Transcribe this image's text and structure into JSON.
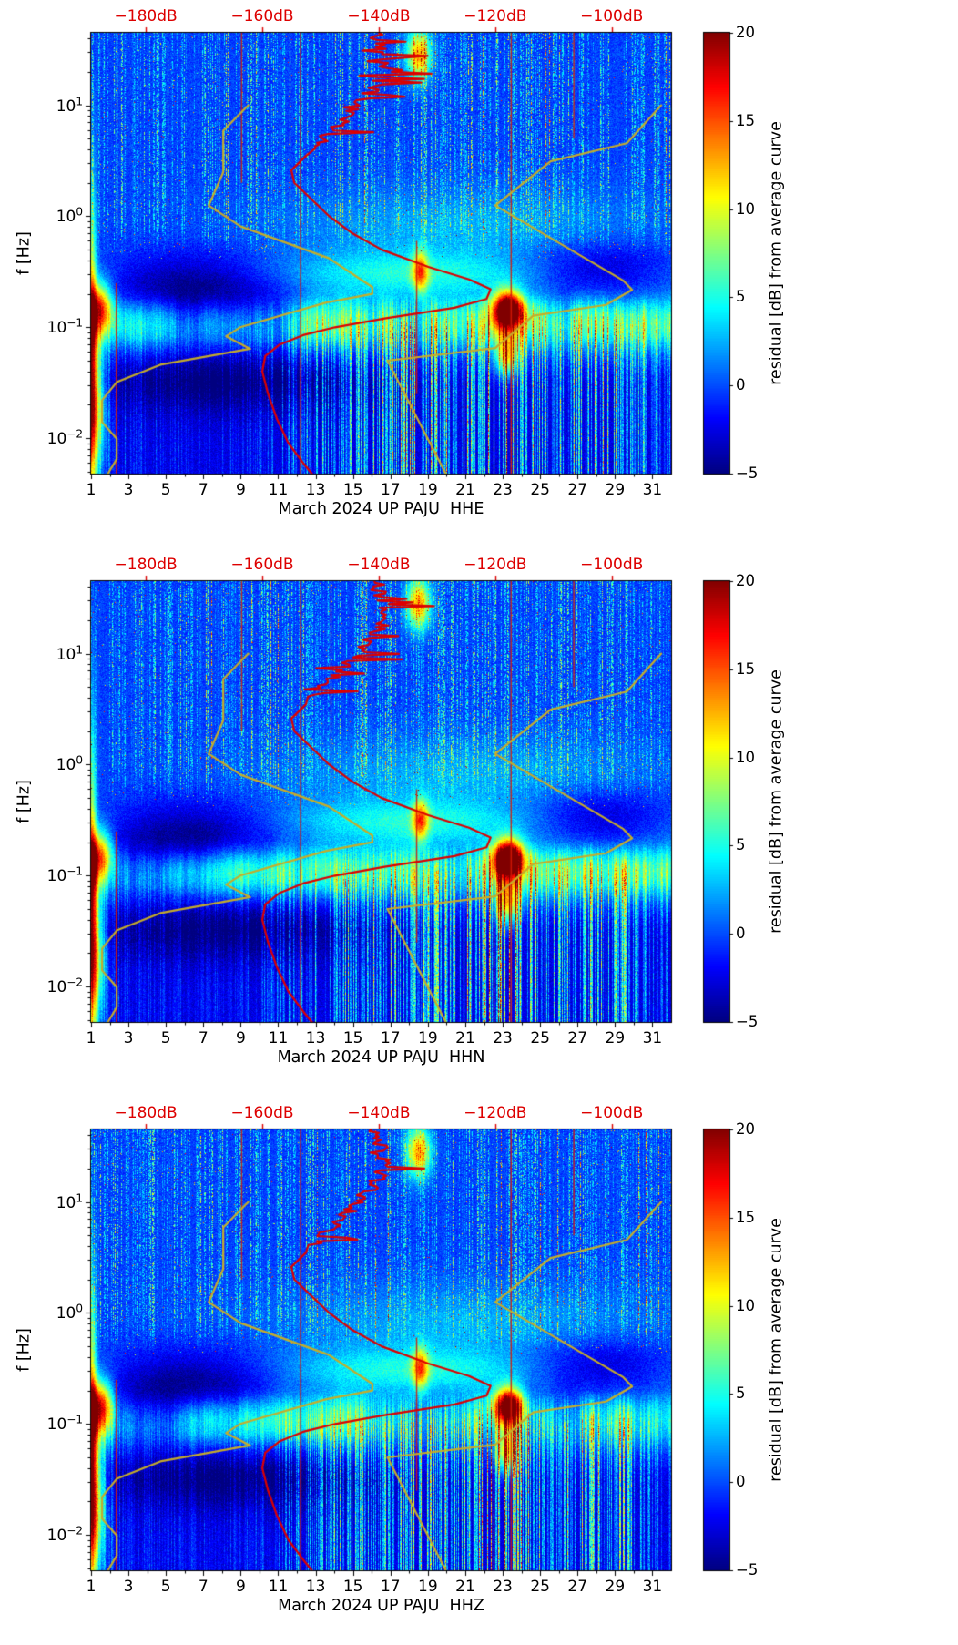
{
  "chart_data": {
    "type": "heatmap",
    "subtype": "seismic residual spectrograms with average-PSD and noise-model overlay curves",
    "n_panels": 3,
    "x": {
      "unit": "day of March 2024",
      "range": [
        1,
        32
      ],
      "tick_values": [
        1,
        3,
        5,
        7,
        9,
        11,
        13,
        15,
        17,
        19,
        21,
        23,
        25,
        27,
        29,
        31
      ],
      "tick_labels": [
        "1",
        "3",
        "5",
        "7",
        "9",
        "11",
        "13",
        "15",
        "17",
        "19",
        "21",
        "23",
        "25",
        "27",
        "29",
        "31"
      ]
    },
    "y": {
      "label": "f [Hz]",
      "scale": "log",
      "range_hz": [
        0.0048,
        45
      ],
      "tick_base": "10",
      "tick_exponents": [
        1,
        0,
        -1,
        -2
      ],
      "tick_exponent_labels": [
        "1",
        "0",
        "−1",
        "−2"
      ]
    },
    "top_x": {
      "unit": "dB",
      "color": "#dd0000",
      "range_db": [
        -189.4,
        -89.8
      ],
      "tick_values": [
        -180,
        -160,
        -140,
        -120,
        -100
      ],
      "tick_labels": [
        "−180dB",
        "−160dB",
        "−140dB",
        "−120dB",
        "−100dB"
      ]
    },
    "colorbar": {
      "label": "residual [dB] from average curve",
      "range": [
        -5,
        20
      ],
      "tick_values": [
        20,
        15,
        10,
        5,
        0,
        -5
      ],
      "tick_labels": [
        "20",
        "15",
        "10",
        "5",
        "0",
        "−5"
      ],
      "colormap": "jet"
    },
    "panels": [
      {
        "channel": "HHE",
        "station": "PAJU",
        "network": "UP",
        "xlabel": "March 2024 UP PAJU  HHE",
        "seed": 11
      },
      {
        "channel": "HHN",
        "station": "PAJU",
        "network": "UP",
        "xlabel": "March 2024 UP PAJU  HHN",
        "seed": 22
      },
      {
        "channel": "HHZ",
        "station": "PAJU",
        "network": "UP",
        "xlabel": "March 2024 UP PAJU  HHZ",
        "seed": 33
      }
    ],
    "curves": {
      "station_average_psd": {
        "color": "#dd0000",
        "style": "jagged above 4 Hz",
        "points_f_hz_db": [
          [
            45,
            -140.5
          ],
          [
            30,
            -139.5
          ],
          [
            20,
            -139
          ],
          [
            14,
            -141
          ],
          [
            10,
            -143.5
          ],
          [
            7,
            -146.5
          ],
          [
            5,
            -149.5
          ],
          [
            3.5,
            -152.5
          ],
          [
            2.6,
            -155
          ],
          [
            2.0,
            -154.5
          ],
          [
            1.5,
            -152
          ],
          [
            1.0,
            -148.5
          ],
          [
            0.7,
            -144.5
          ],
          [
            0.5,
            -139.5
          ],
          [
            0.35,
            -131.5
          ],
          [
            0.27,
            -124.5
          ],
          [
            0.22,
            -120.8
          ],
          [
            0.18,
            -121.5
          ],
          [
            0.15,
            -127
          ],
          [
            0.12,
            -139
          ],
          [
            0.1,
            -147.5
          ],
          [
            0.085,
            -153
          ],
          [
            0.07,
            -157
          ],
          [
            0.055,
            -159.5
          ],
          [
            0.04,
            -160
          ],
          [
            0.025,
            -159
          ],
          [
            0.015,
            -157.5
          ],
          [
            0.009,
            -155.5
          ],
          [
            0.006,
            -153
          ],
          [
            0.0048,
            -151.5
          ]
        ]
      },
      "noise_model_low": {
        "color": "#c6ac2a",
        "points_f_hz_db": [
          [
            10,
            -162.4
          ],
          [
            5.9,
            -166.7
          ],
          [
            2.5,
            -166.7
          ],
          [
            1.25,
            -169.2
          ],
          [
            0.81,
            -163.7
          ],
          [
            0.42,
            -148.6
          ],
          [
            0.23,
            -141.1
          ],
          [
            0.2,
            -141.1
          ],
          [
            0.167,
            -149
          ],
          [
            0.1,
            -163.8
          ],
          [
            0.083,
            -166.2
          ],
          [
            0.064,
            -162.1
          ],
          [
            0.046,
            -177.5
          ],
          [
            0.032,
            -185
          ],
          [
            0.022,
            -187.5
          ],
          [
            0.014,
            -187.5
          ],
          [
            0.0099,
            -185
          ],
          [
            0.0065,
            -185
          ],
          [
            0.0048,
            -186.5
          ]
        ]
      },
      "noise_model_high": {
        "color": "#c6ac2a",
        "points_f_hz_db": [
          [
            10,
            -91.5
          ],
          [
            4.55,
            -97.4
          ],
          [
            3.13,
            -110.5
          ],
          [
            1.25,
            -120
          ],
          [
            0.263,
            -98
          ],
          [
            0.217,
            -96.5
          ],
          [
            0.159,
            -101
          ],
          [
            0.127,
            -113.5
          ],
          [
            0.065,
            -120
          ],
          [
            0.05,
            -138.5
          ],
          [
            0.0048,
            -128.5
          ]
        ]
      }
    },
    "artifact_lines": [
      {
        "day": 12.2,
        "f_range_hz": [
          45,
          0.0048
        ]
      },
      {
        "day": 23.45,
        "f_range_hz": [
          45,
          0.0048
        ]
      },
      {
        "day": 2.35,
        "f_range_hz": [
          0.25,
          0.0048
        ]
      },
      {
        "day": 18.4,
        "f_range_hz": [
          0.6,
          0.025
        ]
      },
      {
        "day": 9.05,
        "f_range_hz": [
          45,
          2
        ]
      },
      {
        "day": 26.8,
        "f_range_hz": [
          45,
          5
        ]
      }
    ],
    "features": [
      {
        "where": "day 22.5-24, 0.08-0.2 Hz",
        "residual_db": "+15 to +20",
        "note": "intense red microseism anomaly, all three channels"
      },
      {
        "where": "day 1-2, 0.08-0.25 Hz",
        "residual_db": "+10 to +18",
        "note": "hot patch at month start"
      },
      {
        "where": "day 18-19, 0.2-0.4 Hz",
        "residual_db": "+10 to +15",
        "note": "orange spots"
      },
      {
        "where": "day 18-19, ~30 Hz",
        "residual_db": "+10",
        "note": "bright burst near top edge"
      },
      {
        "where": "day 3-11, 0.2-0.5 Hz",
        "residual_db": "-4 to -5",
        "note": "dark quiet pit"
      },
      {
        "where": "day 25-31, 0.2-0.5 Hz",
        "residual_db": "-3 to -5",
        "note": "dark band"
      },
      {
        "where": "day 13-25, below 0.09 Hz",
        "residual_db": "0 to +12",
        "note": "dense bright vertical streaks"
      },
      {
        "where": "above 0.5 Hz, whole month",
        "residual_db": "-2 to +8",
        "note": "speckled blue background with sporadic bright vertical streaks"
      }
    ]
  }
}
